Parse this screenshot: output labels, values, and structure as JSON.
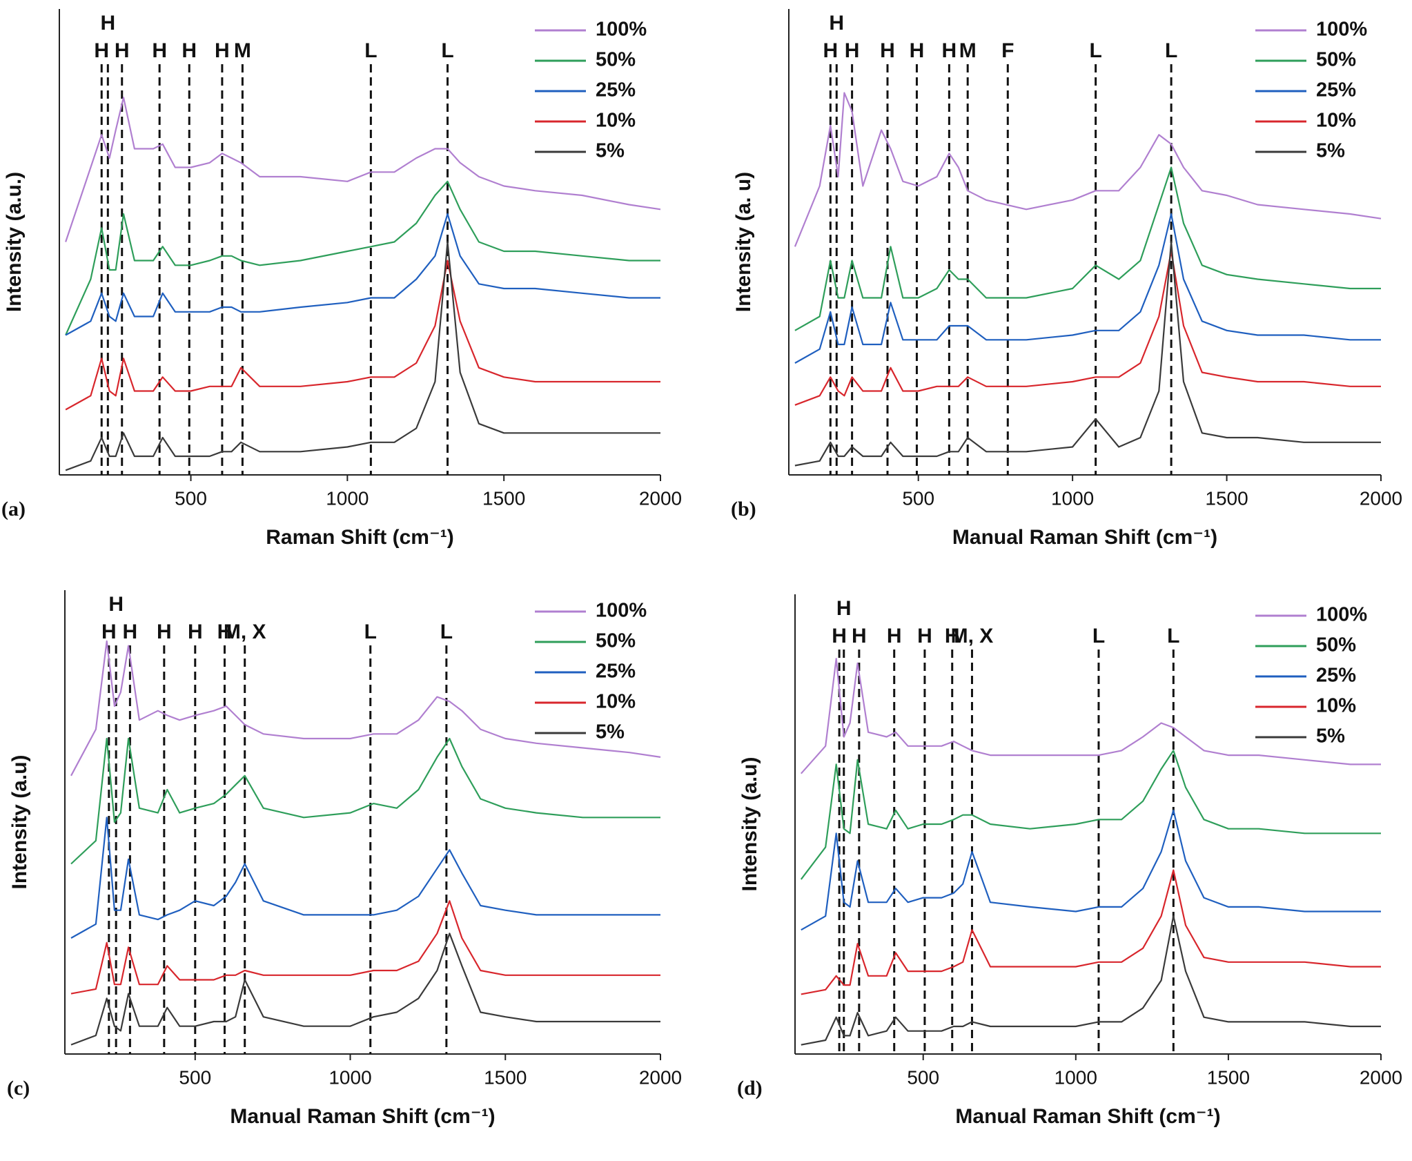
{
  "chart_data": [
    {
      "type": "line",
      "panel_label": "(a)",
      "x_label": "Raman Shift (cm⁻¹)",
      "y_label": "Intensity (a.u.)",
      "legend": "upper right",
      "xlim": [
        80,
        2000
      ],
      "xticks": [
        500,
        1000,
        1500,
        2000
      ],
      "ylim": [
        0,
        100
      ],
      "x": [
        100,
        180,
        215,
        240,
        260,
        285,
        320,
        380,
        410,
        450,
        500,
        560,
        600,
        630,
        660,
        720,
        850,
        1000,
        1075,
        1150,
        1220,
        1280,
        1320,
        1360,
        1420,
        1500,
        1600,
        1750,
        1900,
        2000
      ],
      "markers": [
        {
          "x": 215,
          "label": "H"
        },
        {
          "x": 235,
          "label": "H"
        },
        {
          "x": 280,
          "label": "H"
        },
        {
          "x": 400,
          "label": "H"
        },
        {
          "x": 495,
          "label": "H"
        },
        {
          "x": 600,
          "label": "H"
        },
        {
          "x": 665,
          "label": "M"
        },
        {
          "x": 1075,
          "label": "L"
        },
        {
          "x": 1320,
          "label": "L"
        }
      ],
      "series": [
        {
          "name": "100%",
          "color": "#b07fd0",
          "values": [
            50,
            66,
            73,
            68,
            74,
            81,
            70,
            70,
            71,
            66,
            66,
            67,
            69,
            68,
            67,
            64,
            64,
            63,
            65,
            65,
            68,
            70,
            70,
            67,
            64,
            62,
            61,
            60,
            58,
            57
          ]
        },
        {
          "name": "50%",
          "color": "#2e9e5a",
          "values": [
            30,
            42,
            53,
            44,
            44,
            56,
            46,
            46,
            49,
            45,
            45,
            46,
            47,
            47,
            46,
            45,
            46,
            48,
            49,
            50,
            54,
            60,
            63,
            57,
            50,
            48,
            48,
            47,
            46,
            46
          ]
        },
        {
          "name": "25%",
          "color": "#1f5fbf",
          "values": [
            30,
            33,
            39,
            34,
            33,
            39,
            34,
            34,
            39,
            35,
            35,
            35,
            36,
            36,
            35,
            35,
            36,
            37,
            38,
            38,
            42,
            47,
            56,
            47,
            41,
            40,
            40,
            39,
            38,
            38
          ]
        },
        {
          "name": "10%",
          "color": "#d8262c",
          "values": [
            14,
            17,
            25,
            18,
            17,
            25,
            18,
            18,
            21,
            18,
            18,
            19,
            19,
            19,
            23,
            19,
            19,
            20,
            21,
            21,
            24,
            32,
            46,
            33,
            23,
            21,
            20,
            20,
            20,
            20
          ]
        },
        {
          "name": "5%",
          "color": "#3a3a3a",
          "values": [
            1,
            3,
            8,
            4,
            4,
            9,
            4,
            4,
            8,
            4,
            4,
            4,
            5,
            5,
            7,
            5,
            5,
            6,
            7,
            7,
            10,
            20,
            50,
            22,
            11,
            9,
            9,
            9,
            9,
            9
          ]
        }
      ]
    },
    {
      "type": "line",
      "panel_label": "(b)",
      "x_label": "Manual Raman Shift (cm⁻¹)",
      "y_label": "Intensity (a. u)",
      "legend": "upper right",
      "xlim": [
        80,
        2000
      ],
      "xticks": [
        500,
        1000,
        1500,
        2000
      ],
      "ylim": [
        0,
        100
      ],
      "x": [
        100,
        180,
        215,
        240,
        260,
        285,
        320,
        380,
        410,
        450,
        500,
        560,
        600,
        630,
        660,
        720,
        850,
        1000,
        1075,
        1150,
        1220,
        1280,
        1320,
        1360,
        1420,
        1500,
        1600,
        1750,
        1900,
        2000
      ],
      "markers": [
        {
          "x": 215,
          "label": "H"
        },
        {
          "x": 235,
          "label": "H"
        },
        {
          "x": 285,
          "label": "H"
        },
        {
          "x": 400,
          "label": "H"
        },
        {
          "x": 495,
          "label": "H"
        },
        {
          "x": 600,
          "label": "H"
        },
        {
          "x": 660,
          "label": "M"
        },
        {
          "x": 790,
          "label": "F"
        },
        {
          "x": 1075,
          "label": "L"
        },
        {
          "x": 1320,
          "label": "L"
        }
      ],
      "series": [
        {
          "name": "100%",
          "color": "#b07fd0",
          "values": [
            49,
            62,
            75,
            64,
            82,
            78,
            62,
            74,
            70,
            63,
            62,
            64,
            69,
            66,
            61,
            59,
            57,
            59,
            61,
            61,
            66,
            73,
            71,
            66,
            61,
            60,
            58,
            57,
            56,
            55
          ]
        },
        {
          "name": "50%",
          "color": "#2e9e5a",
          "values": [
            31,
            34,
            46,
            38,
            38,
            46,
            38,
            38,
            49,
            38,
            38,
            40,
            44,
            42,
            42,
            38,
            38,
            40,
            45,
            42,
            46,
            58,
            66,
            54,
            45,
            43,
            42,
            41,
            40,
            40
          ]
        },
        {
          "name": "25%",
          "color": "#1f5fbf",
          "values": [
            24,
            27,
            35,
            28,
            28,
            36,
            28,
            28,
            37,
            29,
            29,
            29,
            32,
            32,
            32,
            29,
            29,
            30,
            31,
            31,
            35,
            45,
            56,
            42,
            33,
            31,
            30,
            30,
            29,
            29
          ]
        },
        {
          "name": "10%",
          "color": "#d8262c",
          "values": [
            15,
            17,
            21,
            18,
            17,
            21,
            18,
            18,
            23,
            18,
            18,
            19,
            19,
            19,
            21,
            19,
            19,
            20,
            21,
            21,
            24,
            34,
            48,
            32,
            22,
            21,
            20,
            20,
            19,
            19
          ]
        },
        {
          "name": "5%",
          "color": "#3a3a3a",
          "values": [
            2,
            3,
            7,
            4,
            4,
            6,
            4,
            4,
            7,
            4,
            4,
            4,
            5,
            5,
            8,
            5,
            5,
            6,
            12,
            6,
            8,
            18,
            50,
            20,
            9,
            8,
            8,
            7,
            7,
            7
          ]
        }
      ]
    },
    {
      "type": "line",
      "panel_label": "(c)",
      "x_label": "Manual Raman Shift (cm⁻¹)",
      "y_label": "Intensity (a.u)",
      "legend": "upper right",
      "xlim": [
        80,
        2000
      ],
      "xticks": [
        500,
        1000,
        1500,
        2000
      ],
      "ylim": [
        0,
        100
      ],
      "x": [
        100,
        180,
        215,
        240,
        260,
        285,
        320,
        380,
        410,
        450,
        500,
        560,
        600,
        630,
        660,
        720,
        850,
        1000,
        1075,
        1150,
        1220,
        1280,
        1320,
        1360,
        1420,
        1500,
        1600,
        1750,
        1900,
        2000
      ],
      "markers": [
        {
          "x": 222,
          "label": "H"
        },
        {
          "x": 245,
          "label": "H"
        },
        {
          "x": 290,
          "label": "H"
        },
        {
          "x": 400,
          "label": "H"
        },
        {
          "x": 500,
          "label": "H"
        },
        {
          "x": 595,
          "label": "H"
        },
        {
          "x": 660,
          "label": "M, X"
        },
        {
          "x": 1065,
          "label": "L"
        },
        {
          "x": 1310,
          "label": "L"
        }
      ],
      "series": [
        {
          "name": "100%",
          "color": "#b07fd0",
          "values": [
            60,
            70,
            89,
            75,
            78,
            88,
            72,
            74,
            73,
            72,
            73,
            74,
            75,
            73,
            71,
            69,
            68,
            68,
            69,
            69,
            72,
            77,
            76,
            74,
            70,
            68,
            67,
            66,
            65,
            64
          ]
        },
        {
          "name": "50%",
          "color": "#2e9e5a",
          "values": [
            41,
            46,
            68,
            50,
            52,
            68,
            53,
            52,
            57,
            52,
            53,
            54,
            56,
            58,
            60,
            53,
            51,
            52,
            54,
            53,
            57,
            64,
            68,
            62,
            55,
            53,
            52,
            51,
            51,
            51
          ]
        },
        {
          "name": "25%",
          "color": "#1f5fbf",
          "values": [
            25,
            28,
            51,
            31,
            31,
            42,
            30,
            29,
            30,
            31,
            33,
            32,
            34,
            37,
            41,
            33,
            30,
            30,
            30,
            31,
            34,
            40,
            44,
            39,
            32,
            31,
            30,
            30,
            30,
            30
          ]
        },
        {
          "name": "10%",
          "color": "#d8262c",
          "values": [
            13,
            14,
            24,
            15,
            15,
            23,
            15,
            15,
            19,
            16,
            16,
            16,
            17,
            17,
            18,
            17,
            17,
            17,
            18,
            18,
            20,
            26,
            33,
            25,
            18,
            17,
            17,
            17,
            17,
            17
          ]
        },
        {
          "name": "5%",
          "color": "#3a3a3a",
          "values": [
            2,
            4,
            12,
            6,
            5,
            13,
            6,
            6,
            10,
            6,
            6,
            7,
            7,
            8,
            16,
            8,
            6,
            6,
            8,
            9,
            12,
            18,
            26,
            19,
            9,
            8,
            7,
            7,
            7,
            7
          ]
        }
      ]
    },
    {
      "type": "line",
      "panel_label": "(d)",
      "x_label": "Manual Raman Shift (cm⁻¹)",
      "y_label": "Intensity (a.u)",
      "legend": "upper right",
      "xlim": [
        80,
        2000
      ],
      "xticks": [
        500,
        1000,
        1500,
        2000
      ],
      "ylim": [
        0,
        100
      ],
      "x": [
        100,
        180,
        215,
        240,
        260,
        285,
        320,
        380,
        410,
        450,
        500,
        560,
        600,
        630,
        660,
        720,
        850,
        1000,
        1075,
        1150,
        1220,
        1280,
        1320,
        1360,
        1420,
        1500,
        1600,
        1750,
        1900,
        2000
      ],
      "markers": [
        {
          "x": 225,
          "label": "H"
        },
        {
          "x": 240,
          "label": "H"
        },
        {
          "x": 290,
          "label": "H"
        },
        {
          "x": 405,
          "label": "H"
        },
        {
          "x": 505,
          "label": "H"
        },
        {
          "x": 595,
          "label": "H"
        },
        {
          "x": 660,
          "label": "M, X"
        },
        {
          "x": 1075,
          "label": "L"
        },
        {
          "x": 1320,
          "label": "L"
        }
      ],
      "series": [
        {
          "name": "100%",
          "color": "#b07fd0",
          "values": [
            61,
            67,
            86,
            69,
            72,
            85,
            70,
            69,
            70,
            67,
            67,
            67,
            68,
            67,
            66,
            65,
            65,
            65,
            65,
            66,
            69,
            72,
            71,
            69,
            66,
            65,
            65,
            64,
            63,
            63
          ]
        },
        {
          "name": "50%",
          "color": "#2e9e5a",
          "values": [
            38,
            45,
            63,
            49,
            48,
            64,
            50,
            49,
            53,
            49,
            50,
            50,
            51,
            52,
            52,
            50,
            49,
            50,
            51,
            51,
            55,
            62,
            66,
            58,
            51,
            49,
            49,
            48,
            48,
            48
          ]
        },
        {
          "name": "25%",
          "color": "#1f5fbf",
          "values": [
            27,
            30,
            48,
            33,
            32,
            42,
            33,
            33,
            36,
            33,
            34,
            34,
            35,
            37,
            44,
            33,
            32,
            31,
            32,
            32,
            36,
            44,
            53,
            42,
            34,
            32,
            32,
            31,
            31,
            31
          ]
        },
        {
          "name": "10%",
          "color": "#d8262c",
          "values": [
            13,
            14,
            17,
            15,
            15,
            24,
            17,
            17,
            22,
            18,
            18,
            18,
            19,
            20,
            27,
            19,
            19,
            19,
            20,
            20,
            23,
            30,
            40,
            28,
            21,
            20,
            20,
            20,
            19,
            19
          ]
        },
        {
          "name": "5%",
          "color": "#3a3a3a",
          "values": [
            2,
            3,
            8,
            4,
            4,
            9,
            4,
            5,
            8,
            5,
            5,
            5,
            6,
            6,
            7,
            6,
            6,
            6,
            7,
            7,
            10,
            16,
            30,
            18,
            8,
            7,
            7,
            7,
            6,
            6
          ]
        }
      ]
    }
  ]
}
